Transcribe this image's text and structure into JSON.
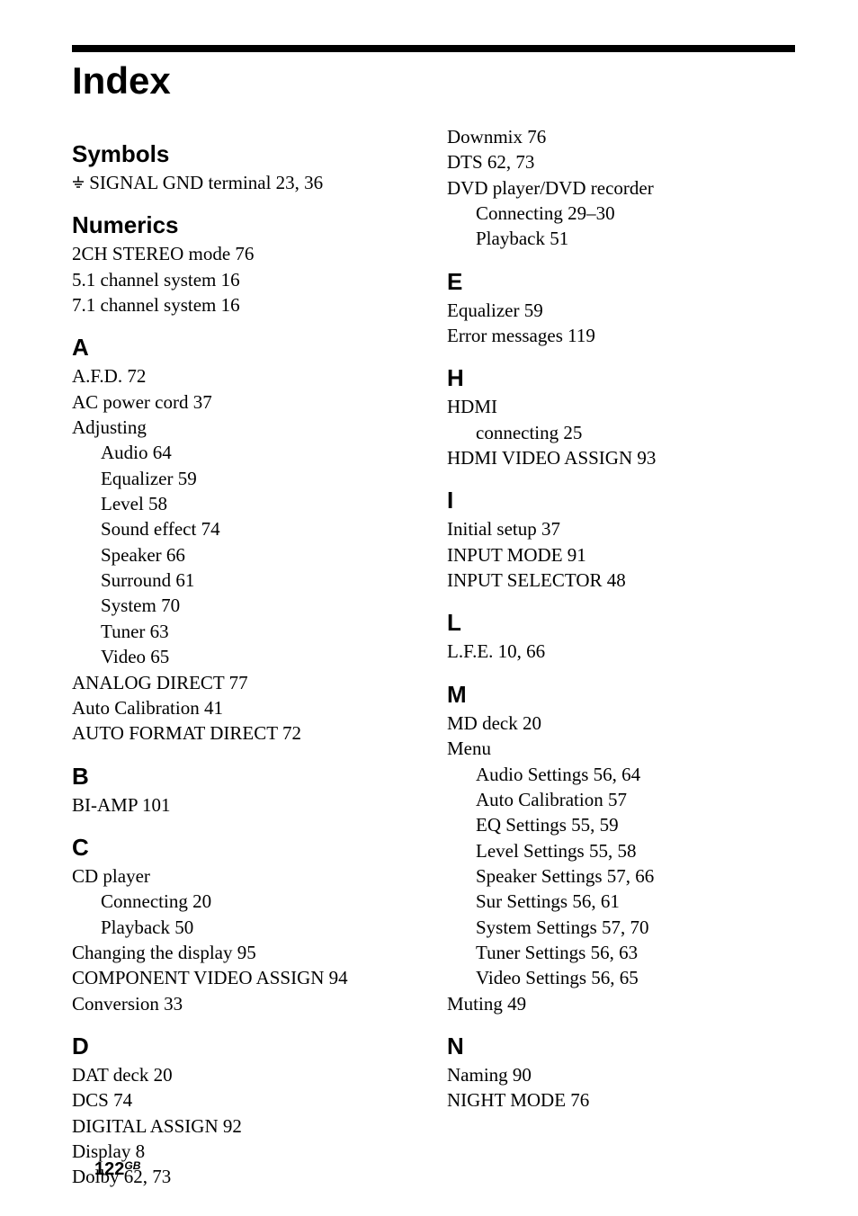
{
  "page": {
    "bar_color": "#000000",
    "background": "#ffffff",
    "title": "Index",
    "footer_number": "122",
    "footer_suffix": "GB"
  },
  "left": {
    "symbols": {
      "head": "Symbols",
      "entries": [
        {
          "text": "SIGNAL GND terminal   23, 36",
          "icon": true
        }
      ]
    },
    "numerics": {
      "head": "Numerics",
      "entries": [
        {
          "text": "2CH STEREO mode   76"
        },
        {
          "text": "5.1 channel system   16"
        },
        {
          "text": "7.1 channel system   16"
        }
      ]
    },
    "a": {
      "head": "A",
      "entries": [
        {
          "text": "A.F.D.   72"
        },
        {
          "text": "AC power cord   37"
        },
        {
          "text": "Adjusting"
        },
        {
          "text": "Audio   64",
          "sub": true
        },
        {
          "text": "Equalizer   59",
          "sub": true
        },
        {
          "text": "Level   58",
          "sub": true
        },
        {
          "text": "Sound effect   74",
          "sub": true
        },
        {
          "text": "Speaker   66",
          "sub": true
        },
        {
          "text": "Surround   61",
          "sub": true
        },
        {
          "text": "System   70",
          "sub": true
        },
        {
          "text": "Tuner   63",
          "sub": true
        },
        {
          "text": "Video   65",
          "sub": true
        },
        {
          "text": "ANALOG DIRECT   77"
        },
        {
          "text": "Auto Calibration   41"
        },
        {
          "text": "AUTO FORMAT DIRECT   72"
        }
      ]
    },
    "b": {
      "head": "B",
      "entries": [
        {
          "text": "BI-AMP   101"
        }
      ]
    },
    "c": {
      "head": "C",
      "entries": [
        {
          "text": "CD player"
        },
        {
          "text": "Connecting   20",
          "sub": true
        },
        {
          "text": "Playback   50",
          "sub": true
        },
        {
          "text": "Changing the display   95"
        },
        {
          "text": "COMPONENT VIDEO ASSIGN   94"
        },
        {
          "text": "Conversion   33"
        }
      ]
    },
    "d": {
      "head": "D",
      "entries": [
        {
          "text": "DAT deck   20"
        },
        {
          "text": "DCS   74"
        },
        {
          "text": "DIGITAL ASSIGN   92"
        },
        {
          "text": "Display   8"
        },
        {
          "text": "Dolby   62, 73"
        }
      ]
    }
  },
  "right": {
    "d_cont": {
      "entries": [
        {
          "text": "Downmix   76"
        },
        {
          "text": "DTS   62, 73"
        },
        {
          "text": "DVD player/DVD recorder"
        },
        {
          "text": "Connecting   29–30",
          "sub": true
        },
        {
          "text": "Playback   51",
          "sub": true
        }
      ]
    },
    "e": {
      "head": "E",
      "entries": [
        {
          "text": "Equalizer   59"
        },
        {
          "text": "Error messages   119"
        }
      ]
    },
    "h": {
      "head": "H",
      "entries": [
        {
          "text": "HDMI"
        },
        {
          "text": "connecting   25",
          "sub": true
        },
        {
          "text": "HDMI VIDEO ASSIGN   93"
        }
      ]
    },
    "i": {
      "head": "I",
      "entries": [
        {
          "text": "Initial setup   37"
        },
        {
          "text": "INPUT MODE   91"
        },
        {
          "text": "INPUT SELECTOR   48"
        }
      ]
    },
    "l": {
      "head": "L",
      "entries": [
        {
          "text": "L.F.E.   10, 66"
        }
      ]
    },
    "m": {
      "head": "M",
      "entries": [
        {
          "text": "MD deck   20"
        },
        {
          "text": "Menu"
        },
        {
          "text": "Audio Settings   56, 64",
          "sub": true
        },
        {
          "text": "Auto Calibration   57",
          "sub": true
        },
        {
          "text": "EQ Settings   55, 59",
          "sub": true
        },
        {
          "text": "Level Settings   55, 58",
          "sub": true
        },
        {
          "text": "Speaker Settings   57, 66",
          "sub": true
        },
        {
          "text": "Sur Settings   56, 61",
          "sub": true
        },
        {
          "text": "System Settings   57, 70",
          "sub": true
        },
        {
          "text": "Tuner Settings   56, 63",
          "sub": true
        },
        {
          "text": "Video Settings   56, 65",
          "sub": true
        },
        {
          "text": "Muting   49"
        }
      ]
    },
    "n": {
      "head": "N",
      "entries": [
        {
          "text": "Naming   90"
        },
        {
          "text": "NIGHT MODE   76"
        }
      ]
    }
  }
}
